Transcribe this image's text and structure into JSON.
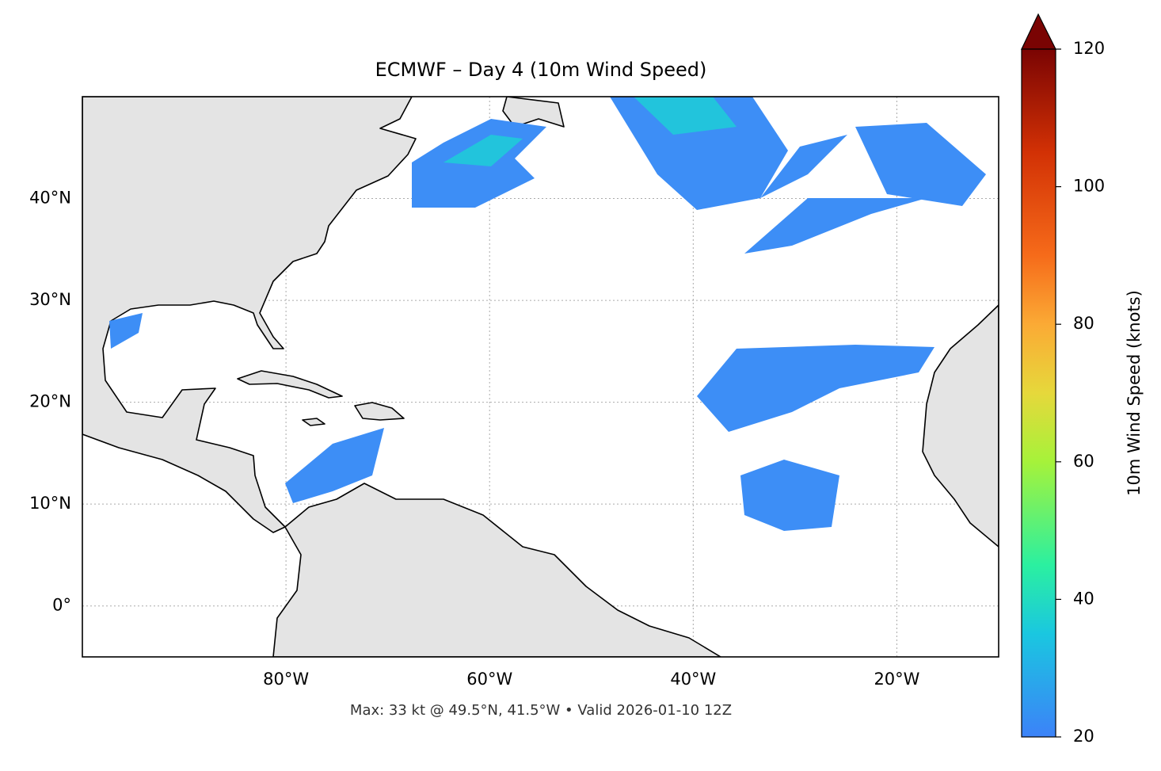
{
  "chart_data": {
    "type": "map",
    "title": "ECMWF – Day 4 (10m Wind Speed)",
    "xlim": [
      -100,
      -10
    ],
    "ylim": [
      -5,
      50
    ],
    "xticks": [
      {
        "value": -80,
        "label": "80°W"
      },
      {
        "value": -60,
        "label": "60°W"
      },
      {
        "value": -40,
        "label": "40°W"
      },
      {
        "value": -20,
        "label": "20°W"
      }
    ],
    "yticks": [
      {
        "value": 0,
        "label": "0°"
      },
      {
        "value": 10,
        "label": "10°N"
      },
      {
        "value": 20,
        "label": "20°N"
      },
      {
        "value": 30,
        "label": "30°N"
      },
      {
        "value": 40,
        "label": "40°N"
      }
    ],
    "grid": true,
    "colorbar": {
      "label": "10m Wind Speed (knots)",
      "lim": [
        20,
        120
      ],
      "ticks": [
        20,
        40,
        60,
        80,
        100,
        120
      ]
    },
    "footnote": "Max: 33 kt @ 49.5°N, 41.5°W • Valid 2026-01-10 12Z"
  }
}
